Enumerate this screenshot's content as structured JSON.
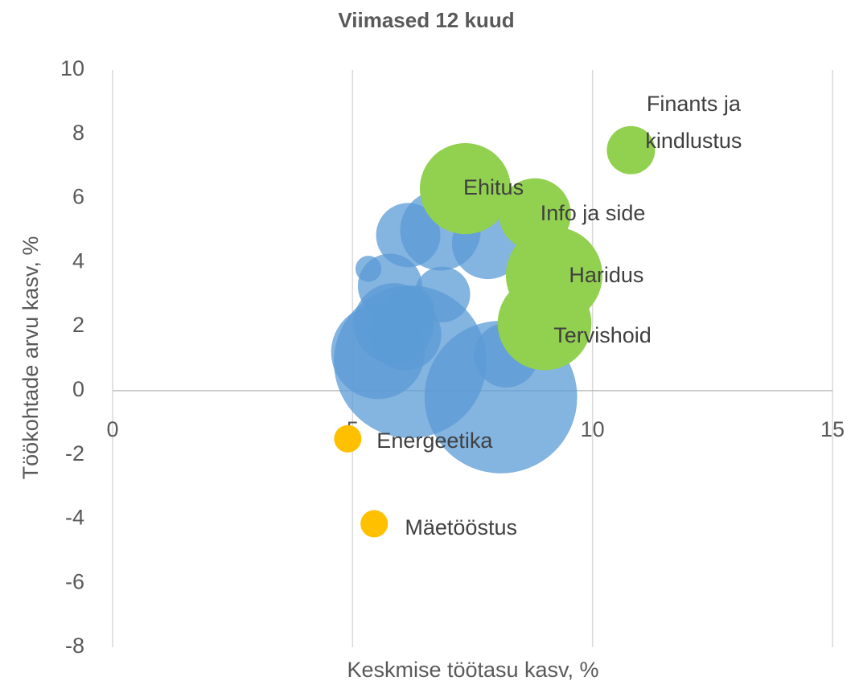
{
  "chart_data": {
    "type": "bubble",
    "title": "Viimased 12 kuud",
    "x_label": "Keskmise töötasu kasv, %",
    "y_label": "Töökohtade arvu kasv, %",
    "xlim": [
      0,
      15
    ],
    "xticks": [
      0,
      5,
      10,
      15
    ],
    "ylim": [
      -8,
      10
    ],
    "yticks": [
      -8,
      -6,
      -4,
      -2,
      0,
      2,
      4,
      6,
      8,
      10
    ],
    "grid": true,
    "series": [
      {
        "color": "#5b9bd5",
        "x": [
          5.53,
          6.2,
          8.09,
          8.2,
          6.1,
          5.86,
          5.78,
          5.33,
          6.87,
          6.2,
          6.16,
          6.83,
          7.82
        ],
        "values": [
          1.2,
          0.9,
          -0.2,
          1.1,
          1.75,
          2.1,
          3.27,
          3.8,
          3.0,
          2.5,
          4.85,
          5.0,
          4.6
        ],
        "sizes": [
          34,
          90,
          90,
          16,
          20,
          25,
          16,
          2.6,
          12,
          9,
          16,
          25,
          20
        ]
      },
      {
        "color": "#92d050",
        "x": [
          10.8,
          7.35,
          8.8,
          9.2,
          9.0
        ],
        "values": [
          7.5,
          6.3,
          5.5,
          3.6,
          2.1
        ],
        "sizes": [
          9,
          32,
          20,
          36,
          34
        ],
        "labels": [
          "Finants ja kindlustus",
          "Ehitus",
          "Info ja side",
          "Haridus",
          "Tervishoid"
        ]
      },
      {
        "color": "#ffc000",
        "x": [
          4.9,
          5.45
        ],
        "values": [
          -1.5,
          -4.15
        ],
        "sizes": [
          2.9,
          2.9
        ],
        "labels": [
          "Energeetika",
          "Mäetööstus"
        ]
      }
    ]
  }
}
